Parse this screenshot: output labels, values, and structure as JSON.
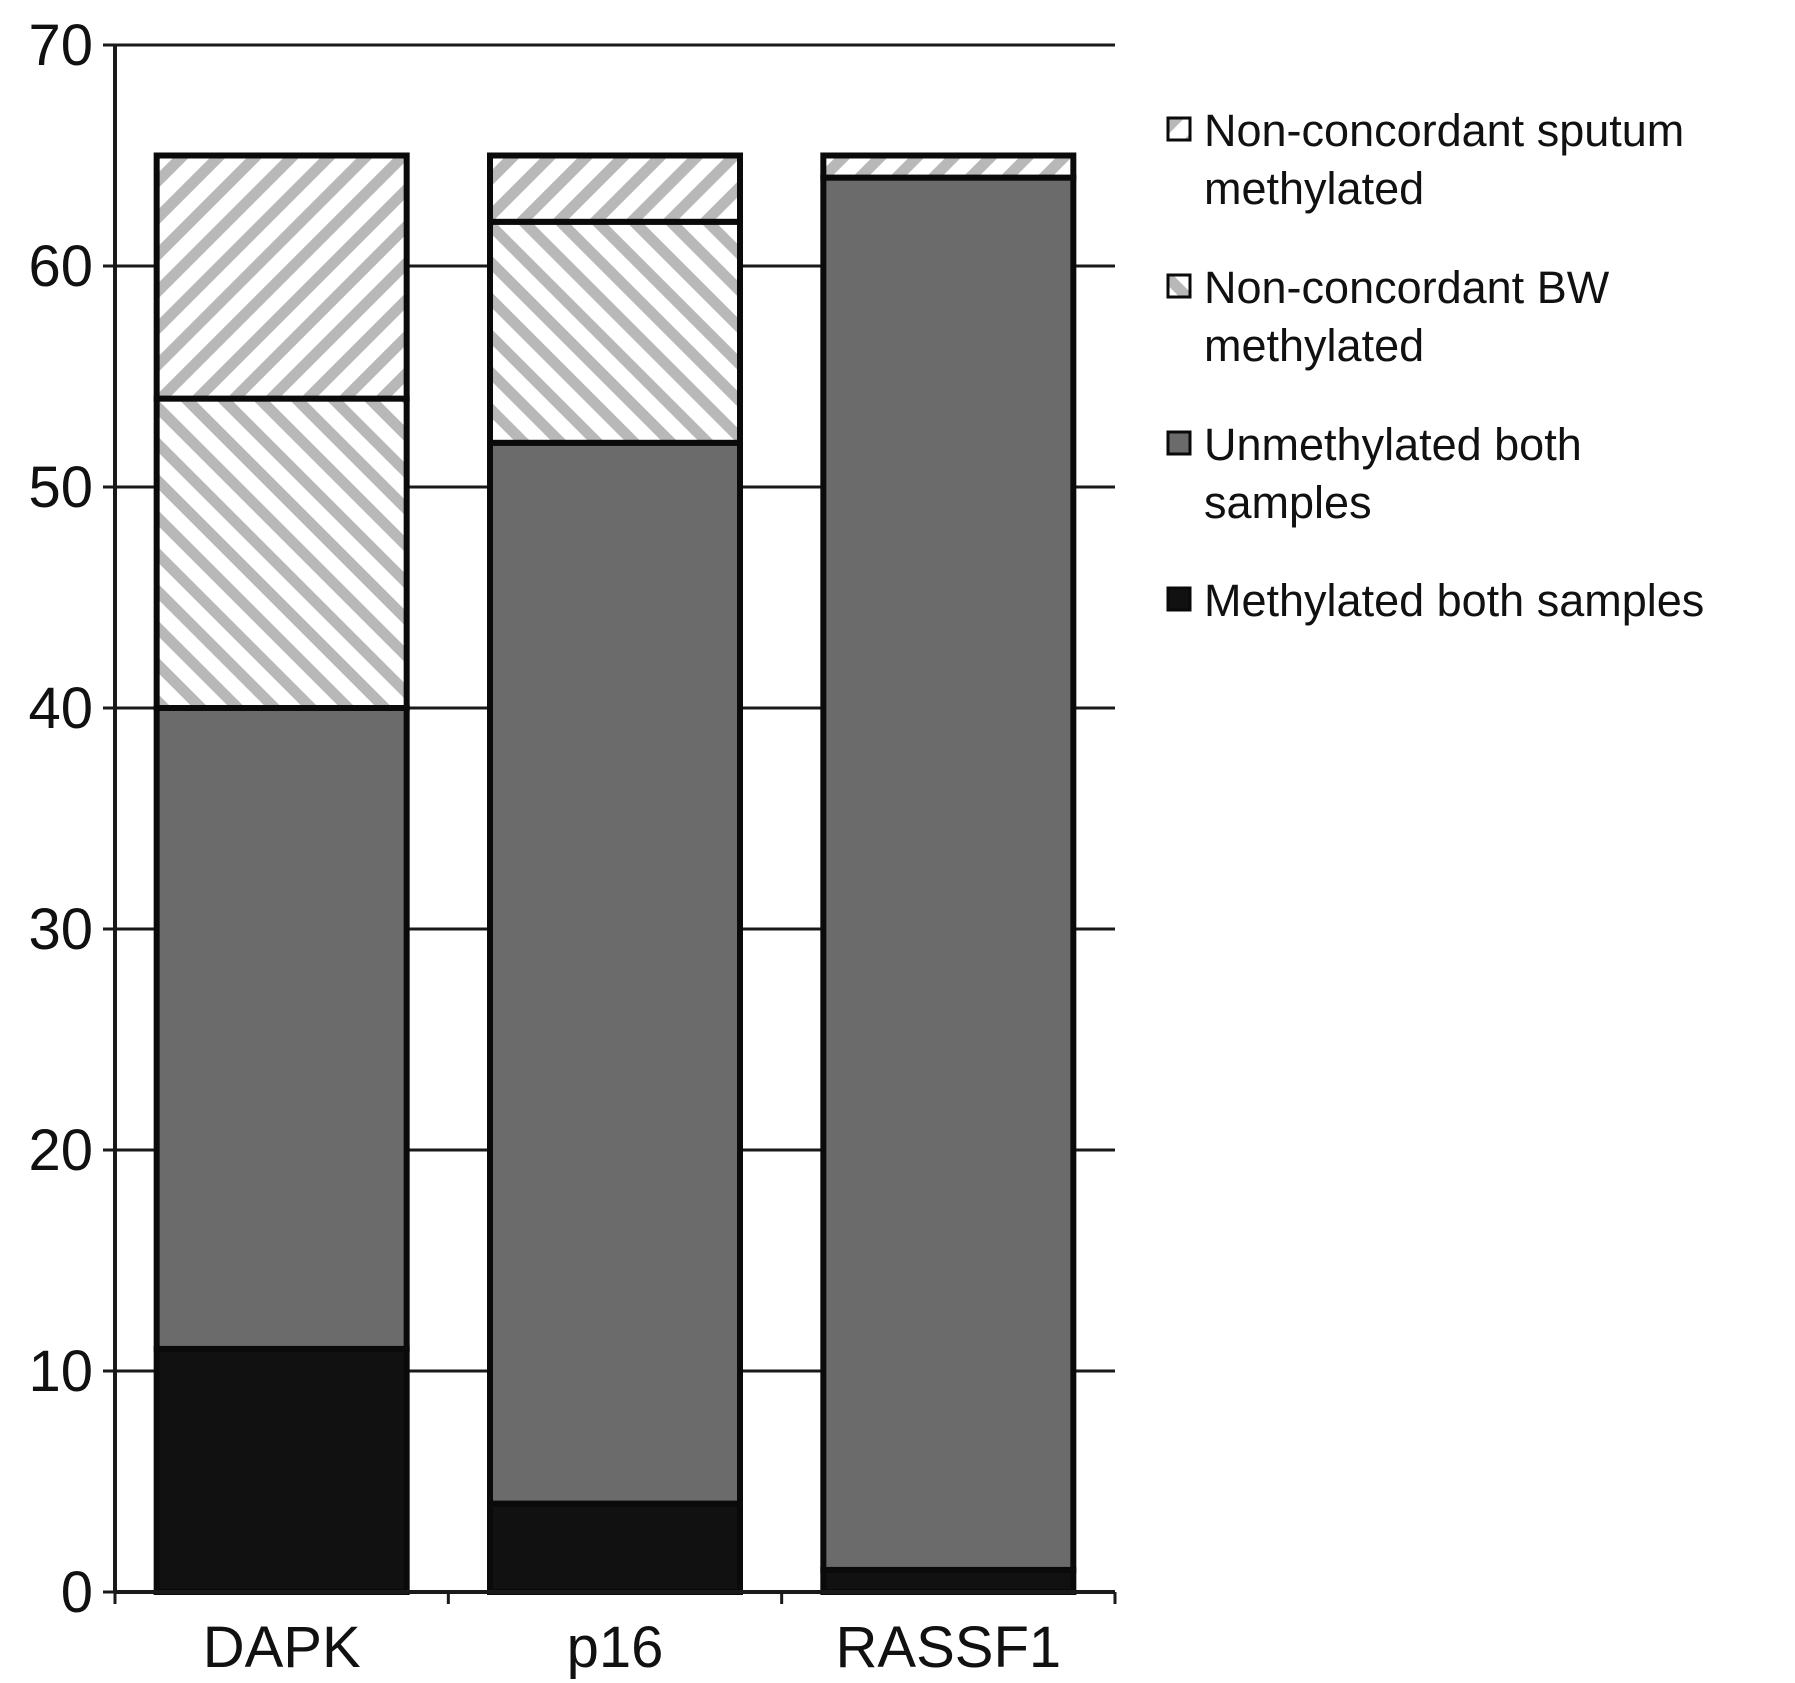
{
  "chart_data": {
    "type": "bar",
    "stacked": true,
    "title": "",
    "xlabel": "",
    "ylabel": "",
    "ylim": [
      0,
      70
    ],
    "yticks": [
      0,
      10,
      20,
      30,
      40,
      50,
      60,
      70
    ],
    "grid": "horizontal",
    "legend_position": "right",
    "categories": [
      "DAPK",
      "p16",
      "RASSF1"
    ],
    "series": [
      {
        "name": "Methylated both samples",
        "values": [
          11,
          4,
          1
        ],
        "color": "#111111",
        "pattern": "solid"
      },
      {
        "name": "Unmethylated both samples",
        "values": [
          29,
          48,
          63
        ],
        "color": "#6b6b6b",
        "pattern": "solid"
      },
      {
        "name": "Non-concordant BW methylated",
        "values": [
          14,
          10,
          0
        ],
        "color": "#b8b8b8",
        "pattern": "hatch-backslash"
      },
      {
        "name": "Non-concordant sputum methylated",
        "values": [
          11,
          3,
          1
        ],
        "color": "#b8b8b8",
        "pattern": "hatch-slash"
      }
    ],
    "legend": [
      {
        "lines": [
          "Non-concordant sputum",
          "methylated"
        ]
      },
      {
        "lines": [
          "Non-concordant BW",
          "methylated"
        ]
      },
      {
        "lines": [
          "Unmethylated both",
          "samples"
        ]
      },
      {
        "lines": [
          "Methylated both samples"
        ]
      }
    ]
  }
}
